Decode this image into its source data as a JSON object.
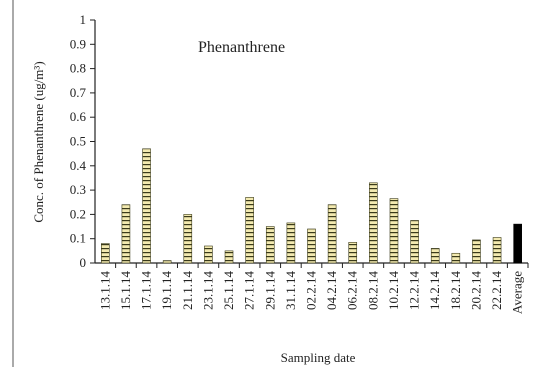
{
  "chart_data": {
    "type": "bar",
    "title": "Phenanthrene",
    "xlabel": "Sampling date",
    "ylabel": "Conc. of  Phenanthrene (ug/m³)",
    "ylim": [
      0,
      1
    ],
    "yticks": [
      "0",
      "0.1",
      "0.2",
      "0.3",
      "0.4",
      "0.5",
      "0.6",
      "0.7",
      "0.8",
      "0.9",
      "1"
    ],
    "categories": [
      "13.1.14",
      "15.1.14",
      "17.1.14",
      "19.1.14",
      "21.1.14",
      "23.1.14",
      "25.1.14",
      "27.1.14",
      "29.1.14",
      "31.1.14",
      "02.2.14",
      "04.2.14",
      "06.2.14",
      "08.2.14",
      "10.2.14",
      "12.2.14",
      "14.2.14",
      "18.2.14",
      "20.2.14",
      "22.2.14",
      "Average"
    ],
    "values": [
      0.08,
      0.24,
      0.47,
      0.01,
      0.2,
      0.07,
      0.05,
      0.27,
      0.15,
      0.165,
      0.14,
      0.24,
      0.085,
      0.33,
      0.265,
      0.175,
      0.06,
      0.04,
      0.095,
      0.105,
      0.16
    ],
    "grid": false,
    "colors": {
      "bar_fill": "#f3eab0",
      "bar_stripe": "#3a3a1a",
      "average_fill": "#000000",
      "axis": "#222222"
    }
  }
}
